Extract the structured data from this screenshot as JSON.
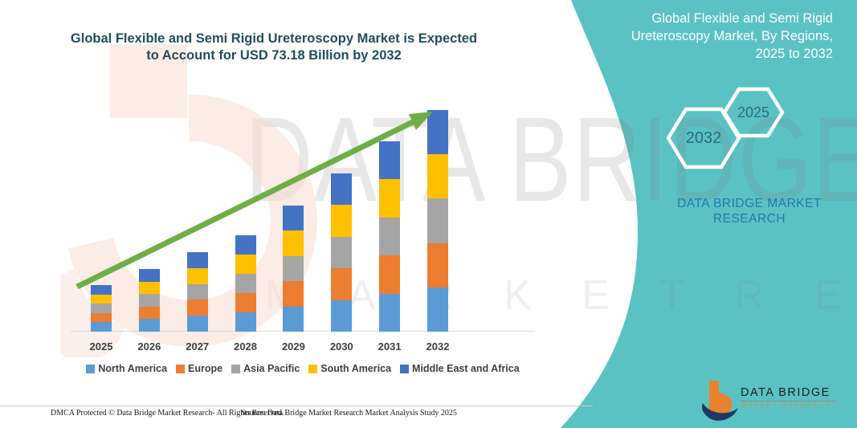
{
  "main_title": {
    "line1": "Global Flexible and Semi Rigid Ureteroscopy Market is Expected",
    "line2": "to Account for USD 73.18 Billion by 2032"
  },
  "side_panel": {
    "title_lines": [
      "Global Flexible and Semi Rigid",
      "Ureteroscopy Market, By Regions,",
      "2025 to 2032"
    ],
    "hexagons": [
      {
        "label": "2032"
      },
      {
        "label": "2025"
      }
    ],
    "brand_text": "DATA BRIDGE MARKET RESEARCH"
  },
  "logo": {
    "name": "DATA BRIDGE",
    "subtitle": "MARKET RESEARCH"
  },
  "watermark": {
    "line1": "DATA BRIDGE",
    "line2": "M A R K E T   R E S E A R C H"
  },
  "footer": {
    "left": "DMCA Protected © Data Bridge Market Research- All Rights Reserved.",
    "right": "Source: Data Bridge Market Research Market Analysis Study 2025"
  },
  "colors": {
    "teal_panel": "#5BC2C4",
    "title_text": "#1F4E5F",
    "brand_blue": "#2579A5",
    "arrow_green": "#6FAE46",
    "logo_orange": "#E8822F",
    "logo_navy": "#1F3864"
  },
  "chart_data": {
    "type": "bar",
    "subtype": "stacked",
    "unit": "USD Billion",
    "categories": [
      "2025",
      "2026",
      "2027",
      "2028",
      "2029",
      "2030",
      "2031",
      "2032"
    ],
    "series": [
      {
        "name": "North America",
        "color": "#5B9BD5",
        "values": [
          3.08,
          4.14,
          5.24,
          6.36,
          8.32,
          10.44,
          12.56,
          14.64
        ]
      },
      {
        "name": "Europe",
        "color": "#ED7D31",
        "values": [
          3.08,
          4.14,
          5.24,
          6.36,
          8.32,
          10.44,
          12.56,
          14.64
        ]
      },
      {
        "name": "Asia Pacific",
        "color": "#A5A5A5",
        "values": [
          3.08,
          4.14,
          5.24,
          6.36,
          8.32,
          10.44,
          12.56,
          14.64
        ]
      },
      {
        "name": "South America",
        "color": "#FFC000",
        "values": [
          3.08,
          4.14,
          5.24,
          6.36,
          8.32,
          10.44,
          12.56,
          14.64
        ]
      },
      {
        "name": "Middle East and Africa",
        "color": "#4472C4",
        "values": [
          3.08,
          4.14,
          5.24,
          6.36,
          8.32,
          10.44,
          12.56,
          14.64
        ]
      }
    ],
    "totals": [
      15.4,
      20.7,
      26.2,
      31.8,
      41.6,
      52.2,
      62.8,
      73.18
    ],
    "ylim": [
      0,
      80
    ],
    "grid": false,
    "y_axis_visible": false,
    "legend_position": "bottom",
    "annotations": [
      "upward trend arrow"
    ]
  }
}
